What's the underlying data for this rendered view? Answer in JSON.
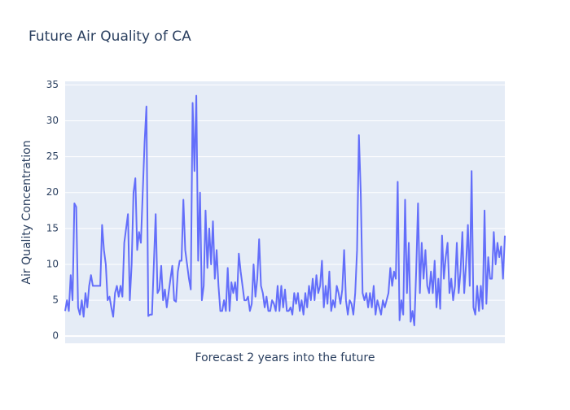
{
  "chart_data": {
    "type": "line",
    "title": "Future Air Quality of CA",
    "xlabel": "Forecast 2 years into the future",
    "ylabel": "Air Quality Concentration",
    "series": [
      {
        "color": "#636efa",
        "values": [
          3.5,
          5,
          3.5,
          8.5,
          5,
          18.5,
          18,
          4,
          3,
          5,
          2.7,
          6,
          4,
          7,
          8.5,
          7,
          7,
          7,
          7,
          7,
          15.5,
          12,
          10,
          5,
          5.5,
          4,
          2.7,
          6,
          7,
          5.5,
          7,
          5.5,
          13,
          15,
          17,
          5,
          10,
          20,
          22,
          12,
          14.5,
          13,
          20,
          27,
          32,
          2.8,
          3,
          3,
          10,
          17,
          6,
          6.5,
          9.8,
          5,
          6.5,
          4,
          6,
          8,
          9.8,
          5,
          4.8,
          9,
          10.5,
          10.5,
          19,
          12,
          10,
          8,
          6.5,
          32.5,
          23,
          33.5,
          10.5,
          20,
          5,
          7,
          17.5,
          9.5,
          15,
          10,
          16,
          8,
          12,
          7,
          3.5,
          3.5,
          5,
          3.5,
          9.5,
          3.5,
          7.5,
          6,
          7.5,
          5,
          11.5,
          9,
          7,
          5,
          5,
          5.5,
          3.5,
          4.5,
          10,
          5.5,
          8,
          13.5,
          7,
          6,
          4,
          5.5,
          3.5,
          3.5,
          5,
          4.5,
          3.5,
          7,
          3.5,
          7,
          4,
          6.5,
          3.5,
          3.5,
          4,
          3,
          6,
          4.5,
          6,
          3.5,
          5,
          3,
          6,
          4,
          7,
          5,
          8,
          5,
          8.5,
          6,
          7,
          10.5,
          4,
          7,
          4.5,
          9,
          3.5,
          5,
          4,
          7,
          6,
          4.5,
          6.5,
          12,
          5,
          3,
          5,
          4.5,
          3,
          6,
          12,
          28,
          20,
          6,
          5,
          6,
          4,
          6,
          4,
          7,
          3,
          5,
          4,
          3,
          5,
          4,
          5,
          6,
          9.5,
          7,
          9,
          8,
          21.5,
          2.2,
          5,
          3,
          19,
          6,
          13,
          2,
          3.5,
          1.5,
          9,
          18.5,
          6,
          13,
          8,
          12,
          7,
          6,
          9,
          6,
          10.5,
          4,
          8,
          3.8,
          14,
          8,
          11,
          13,
          6,
          8,
          5,
          7,
          13,
          6,
          9,
          14.5,
          6,
          10,
          15.5,
          7,
          23,
          4,
          3,
          7,
          3.5,
          7,
          3.8,
          17.5,
          4.5,
          11,
          8,
          8,
          14.5,
          10,
          13,
          11,
          12.5,
          8,
          14
        ]
      }
    ],
    "ylim": [
      -1,
      35.5
    ],
    "yticks": [
      0,
      5,
      10,
      15,
      20,
      25,
      30,
      35
    ],
    "grid": true
  }
}
